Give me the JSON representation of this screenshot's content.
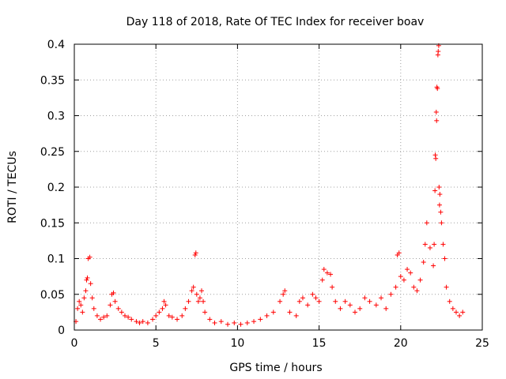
{
  "chart_data": {
    "type": "scatter",
    "title": "Day 118 of 2018, Rate Of TEC Index for receiver boav",
    "xlabel": "GPS time / hours",
    "ylabel": "ROTI / TECUs",
    "xlim": [
      0,
      25
    ],
    "ylim": [
      0,
      0.4
    ],
    "xticks": [
      0,
      5,
      10,
      15,
      20,
      25
    ],
    "xtick_labels": [
      "0",
      "5",
      "10",
      "15",
      "20",
      "25"
    ],
    "yticks": [
      0,
      0.05,
      0.1,
      0.15,
      0.2,
      0.25,
      0.3,
      0.35,
      0.4
    ],
    "ytick_labels": [
      "0",
      "0.05",
      "0.1",
      "0.15",
      "0.2",
      "0.25",
      "0.3",
      "0.35",
      "0.4"
    ],
    "grid": true,
    "marker": "plus",
    "color": "#ff0000",
    "series": [
      {
        "name": "ROTI",
        "points": [
          [
            0.1,
            0.012
          ],
          [
            0.2,
            0.03
          ],
          [
            0.3,
            0.04
          ],
          [
            0.4,
            0.035
          ],
          [
            0.5,
            0.025
          ],
          [
            0.6,
            0.045
          ],
          [
            0.7,
            0.055
          ],
          [
            0.75,
            0.07
          ],
          [
            0.8,
            0.073
          ],
          [
            0.85,
            0.1
          ],
          [
            0.95,
            0.102
          ],
          [
            1.0,
            0.065
          ],
          [
            1.1,
            0.045
          ],
          [
            1.2,
            0.03
          ],
          [
            1.4,
            0.02
          ],
          [
            1.6,
            0.015
          ],
          [
            1.8,
            0.018
          ],
          [
            2.0,
            0.02
          ],
          [
            2.2,
            0.035
          ],
          [
            2.3,
            0.05
          ],
          [
            2.4,
            0.052
          ],
          [
            2.5,
            0.04
          ],
          [
            2.7,
            0.03
          ],
          [
            2.9,
            0.025
          ],
          [
            3.1,
            0.02
          ],
          [
            3.3,
            0.018
          ],
          [
            3.5,
            0.015
          ],
          [
            3.8,
            0.012
          ],
          [
            4.0,
            0.01
          ],
          [
            4.2,
            0.012
          ],
          [
            4.5,
            0.01
          ],
          [
            4.8,
            0.015
          ],
          [
            5.0,
            0.02
          ],
          [
            5.2,
            0.025
          ],
          [
            5.4,
            0.03
          ],
          [
            5.5,
            0.04
          ],
          [
            5.6,
            0.035
          ],
          [
            5.8,
            0.02
          ],
          [
            6.0,
            0.018
          ],
          [
            6.3,
            0.015
          ],
          [
            6.6,
            0.02
          ],
          [
            6.8,
            0.03
          ],
          [
            7.0,
            0.04
          ],
          [
            7.2,
            0.055
          ],
          [
            7.3,
            0.06
          ],
          [
            7.4,
            0.105
          ],
          [
            7.45,
            0.108
          ],
          [
            7.5,
            0.05
          ],
          [
            7.6,
            0.04
          ],
          [
            7.7,
            0.045
          ],
          [
            7.8,
            0.055
          ],
          [
            7.9,
            0.04
          ],
          [
            8.0,
            0.025
          ],
          [
            8.3,
            0.015
          ],
          [
            8.6,
            0.01
          ],
          [
            9.0,
            0.012
          ],
          [
            9.4,
            0.008
          ],
          [
            9.8,
            0.01
          ],
          [
            10.2,
            0.008
          ],
          [
            10.6,
            0.01
          ],
          [
            11.0,
            0.012
          ],
          [
            11.4,
            0.015
          ],
          [
            11.8,
            0.02
          ],
          [
            12.2,
            0.025
          ],
          [
            12.6,
            0.04
          ],
          [
            12.8,
            0.05
          ],
          [
            12.9,
            0.055
          ],
          [
            13.2,
            0.025
          ],
          [
            13.6,
            0.02
          ],
          [
            13.8,
            0.04
          ],
          [
            14.0,
            0.045
          ],
          [
            14.3,
            0.035
          ],
          [
            14.6,
            0.05
          ],
          [
            14.8,
            0.045
          ],
          [
            15.0,
            0.04
          ],
          [
            15.2,
            0.07
          ],
          [
            15.3,
            0.085
          ],
          [
            15.5,
            0.08
          ],
          [
            15.7,
            0.078
          ],
          [
            15.8,
            0.06
          ],
          [
            16.0,
            0.04
          ],
          [
            16.3,
            0.03
          ],
          [
            16.6,
            0.04
          ],
          [
            16.9,
            0.035
          ],
          [
            17.2,
            0.025
          ],
          [
            17.5,
            0.03
          ],
          [
            17.8,
            0.045
          ],
          [
            18.1,
            0.04
          ],
          [
            18.5,
            0.035
          ],
          [
            18.8,
            0.045
          ],
          [
            19.1,
            0.03
          ],
          [
            19.4,
            0.05
          ],
          [
            19.7,
            0.06
          ],
          [
            19.8,
            0.105
          ],
          [
            19.9,
            0.108
          ],
          [
            20.0,
            0.075
          ],
          [
            20.2,
            0.07
          ],
          [
            20.4,
            0.085
          ],
          [
            20.6,
            0.08
          ],
          [
            20.8,
            0.06
          ],
          [
            21.0,
            0.055
          ],
          [
            21.2,
            0.07
          ],
          [
            21.4,
            0.095
          ],
          [
            21.5,
            0.12
          ],
          [
            21.6,
            0.15
          ],
          [
            21.8,
            0.115
          ],
          [
            22.0,
            0.09
          ],
          [
            22.05,
            0.12
          ],
          [
            22.1,
            0.195
          ],
          [
            22.12,
            0.245
          ],
          [
            22.15,
            0.24
          ],
          [
            22.18,
            0.305
          ],
          [
            22.2,
            0.293
          ],
          [
            22.22,
            0.34
          ],
          [
            22.25,
            0.338
          ],
          [
            22.28,
            0.385
          ],
          [
            22.3,
            0.39
          ],
          [
            22.33,
            0.398
          ],
          [
            22.35,
            0.2
          ],
          [
            22.38,
            0.175
          ],
          [
            22.4,
            0.19
          ],
          [
            22.45,
            0.165
          ],
          [
            22.5,
            0.15
          ],
          [
            22.6,
            0.12
          ],
          [
            22.7,
            0.1
          ],
          [
            22.8,
            0.06
          ],
          [
            23.0,
            0.04
          ],
          [
            23.2,
            0.03
          ],
          [
            23.4,
            0.025
          ],
          [
            23.6,
            0.02
          ],
          [
            23.8,
            0.025
          ]
        ]
      }
    ]
  }
}
